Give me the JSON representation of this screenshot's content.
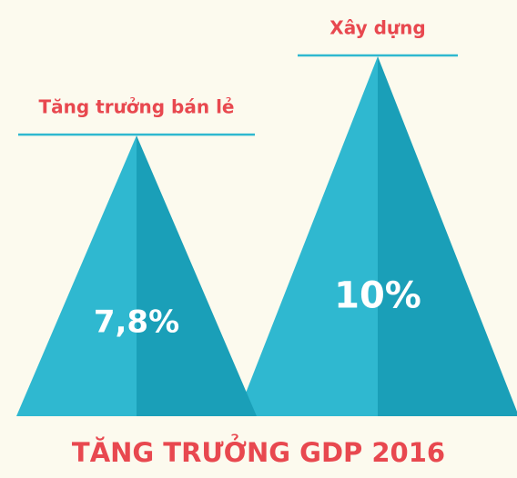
{
  "chart_data": {
    "type": "triangle",
    "title": "TĂNG TRƯỞNG GDP 2016",
    "categories": [
      "Tăng trưởng bán lẻ",
      "Xây dựng"
    ],
    "values": [
      7.8,
      10
    ],
    "value_labels": [
      "7,8%",
      "10%"
    ],
    "color": "#2fb8d0"
  }
}
